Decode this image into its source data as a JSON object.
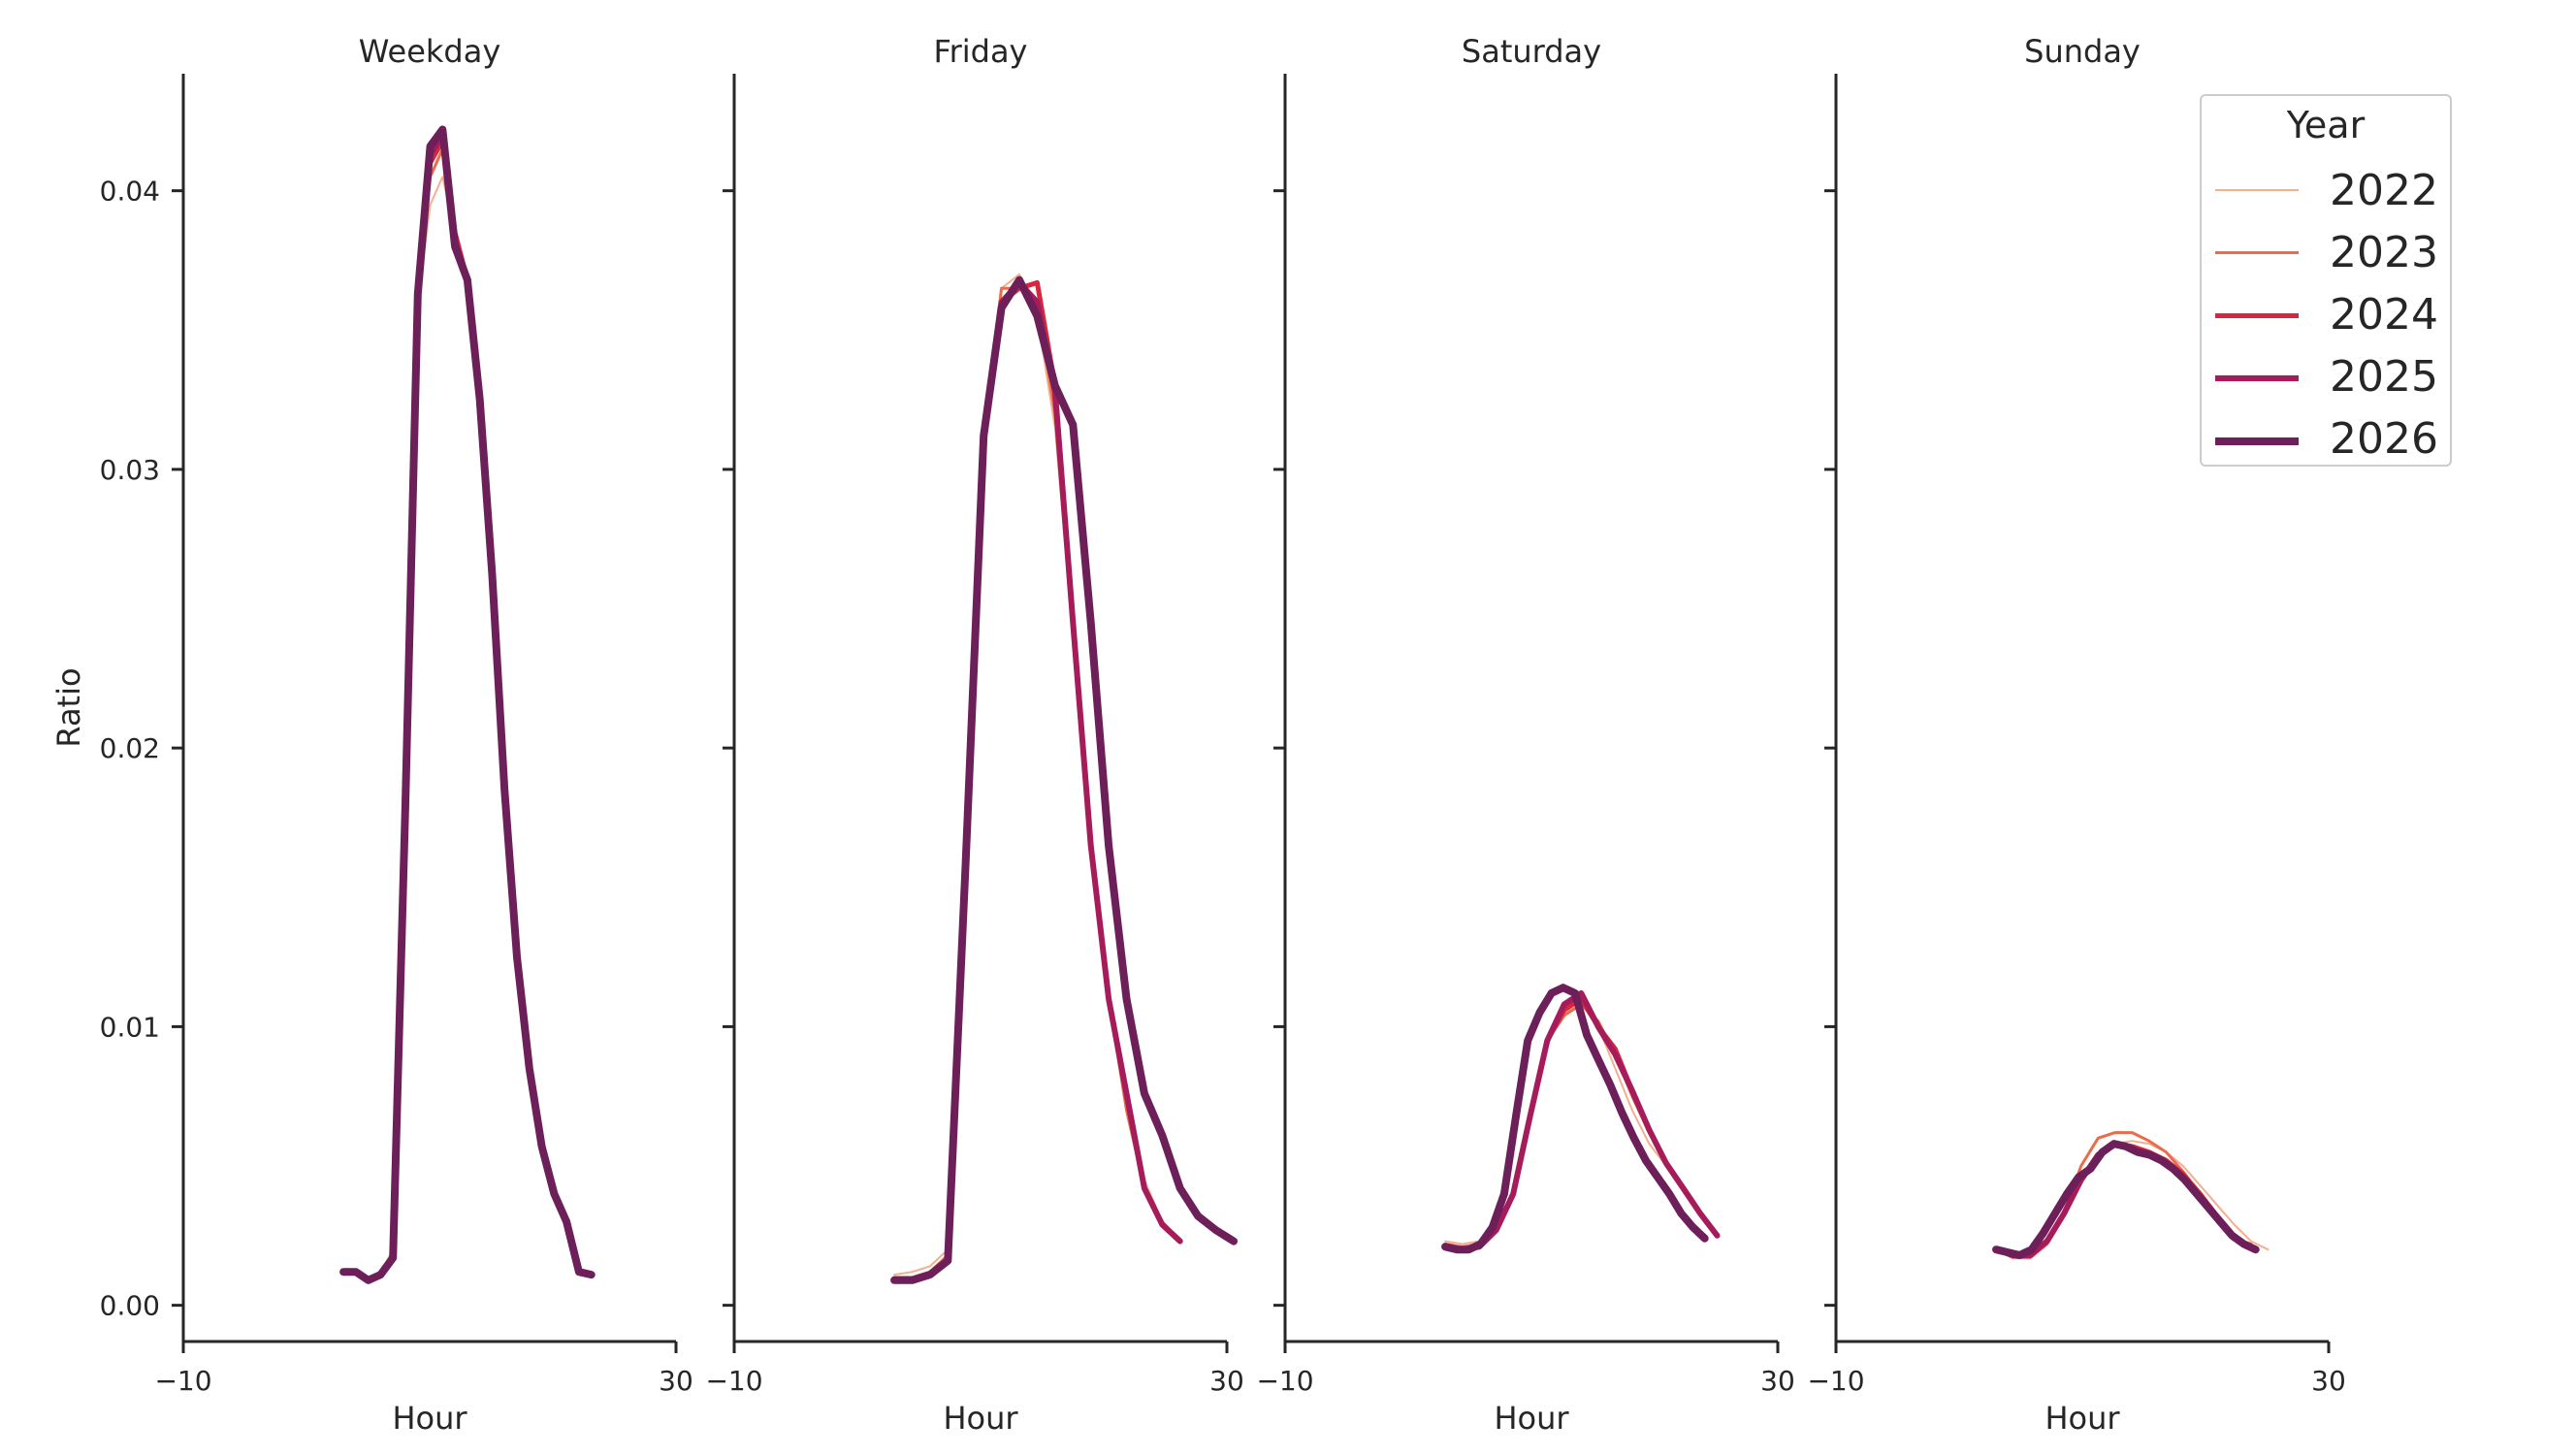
{
  "chart_data": {
    "type": "line",
    "ylabel": "Ratio",
    "xlabel": "Hour",
    "xlim": [
      -10,
      30
    ],
    "ylim": [
      -0.0013,
      0.0442
    ],
    "xticks": [
      -10,
      30
    ],
    "yticks": [
      0.0,
      0.01,
      0.02,
      0.03,
      0.04
    ],
    "ytick_labels": [
      "0.00",
      "0.01",
      "0.02",
      "0.03",
      "0.04"
    ],
    "legend": {
      "title": "Year",
      "placement": "top-right",
      "entries": [
        {
          "label": "2022",
          "color": "#f3b08e",
          "width": 2
        },
        {
          "label": "2023",
          "color": "#ec6b4b",
          "width": 3
        },
        {
          "label": "2024",
          "color": "#d6273f",
          "width": 5
        },
        {
          "label": "2025",
          "color": "#a61b5a",
          "width": 6
        },
        {
          "label": "2026",
          "color": "#6c1f58",
          "width": 8
        }
      ]
    },
    "x": [
      0,
      1,
      2,
      3,
      4,
      5,
      6,
      7,
      8,
      9,
      10,
      11,
      12,
      13,
      14,
      15,
      16,
      17,
      18,
      19,
      20,
      21,
      22,
      23
    ],
    "panels": [
      {
        "title": "Weekday",
        "series": [
          {
            "name": "2022",
            "values": [
              0.0012,
              0.0012,
              0.001,
              0.0012,
              0.002,
              0.018,
              0.036,
              0.0395,
              0.0405,
              0.0385,
              0.0365,
              0.032,
              0.026,
              0.0185,
              0.0125,
              0.0085,
              0.0057,
              0.004,
              0.003,
              0.0013,
              0.0012,
              null,
              null,
              null
            ]
          },
          {
            "name": "2023",
            "values": [
              0.0012,
              0.0012,
              0.0009,
              0.0011,
              0.0018,
              0.018,
              0.0362,
              0.0405,
              0.0415,
              0.0385,
              0.0368,
              0.0322,
              0.0262,
              0.0185,
              0.0125,
              0.0085,
              0.0057,
              0.004,
              0.003,
              0.0012,
              0.0011,
              null,
              null,
              null
            ]
          },
          {
            "name": "2024",
            "values": [
              0.0012,
              0.0012,
              0.0009,
              0.0011,
              0.0018,
              0.018,
              0.0362,
              0.041,
              0.0418,
              0.0385,
              0.0368,
              0.0323,
              0.0262,
              0.0185,
              0.0125,
              0.0085,
              0.0057,
              0.004,
              0.003,
              0.0012,
              0.0011,
              null,
              null,
              null
            ]
          },
          {
            "name": "2025",
            "values": [
              0.0012,
              0.0012,
              0.0009,
              0.0011,
              0.0017,
              0.018,
              0.0363,
              0.0413,
              0.042,
              0.0382,
              0.0368,
              0.0324,
              0.0262,
              0.0185,
              0.0125,
              0.0085,
              0.0057,
              0.004,
              0.003,
              0.0012,
              0.0011,
              null,
              null,
              null
            ]
          },
          {
            "name": "2026",
            "values": [
              0.0012,
              0.0012,
              0.0009,
              0.0011,
              0.0017,
              0.018,
              0.0363,
              0.0416,
              0.0422,
              0.038,
              0.0368,
              0.0325,
              0.0262,
              0.0185,
              0.0125,
              0.0085,
              0.0057,
              0.004,
              0.003,
              0.0012,
              0.0011,
              null,
              null,
              null
            ]
          }
        ]
      },
      {
        "title": "Friday",
        "series": [
          {
            "name": "2022",
            "values": [
              0.0011,
              0.0012,
              0.0014,
              0.002,
              0.016,
              0.0315,
              0.0365,
              0.037,
              0.0355,
              0.0315,
              0.024,
              0.0165,
              0.011,
              0.007,
              0.0045,
              0.003,
              0.0024,
              null,
              null,
              null,
              null,
              null,
              null,
              null
            ]
          },
          {
            "name": "2023",
            "values": [
              0.001,
              0.001,
              0.0012,
              0.0018,
              0.016,
              0.0313,
              0.0365,
              0.0365,
              0.036,
              0.032,
              0.0242,
              0.0165,
              0.011,
              0.007,
              0.0042,
              0.003,
              0.0023,
              null,
              null,
              null,
              null,
              null,
              null,
              null
            ]
          },
          {
            "name": "2024",
            "values": [
              0.0009,
              0.0009,
              0.0011,
              0.0016,
              0.016,
              0.0312,
              0.036,
              0.0365,
              0.0367,
              0.033,
              0.0244,
              0.0165,
              0.011,
              0.0075,
              0.0042,
              0.0029,
              0.0023,
              null,
              null,
              null,
              null,
              null,
              null,
              null
            ]
          },
          {
            "name": "2025",
            "values": [
              0.0009,
              0.0009,
              0.0011,
              0.0016,
              0.016,
              0.0312,
              0.036,
              0.0367,
              0.036,
              0.0328,
              0.0245,
              0.0165,
              0.011,
              0.0076,
              0.0042,
              0.0029,
              0.0023,
              null,
              null,
              null,
              null,
              null,
              null,
              null
            ]
          },
          {
            "name": "2026",
            "values": [
              0.0009,
              0.0009,
              0.0011,
              0.0016,
              0.016,
              0.0312,
              0.0358,
              0.0368,
              0.0355,
              0.033,
              0.0316,
              0.0245,
              0.0165,
              0.011,
              0.0076,
              0.0061,
              0.0042,
              0.0032,
              0.0027,
              0.0023,
              null,
              null,
              null,
              null
            ]
          }
        ]
      },
      {
        "title": "Saturday",
        "series": [
          {
            "name": "2022",
            "values": [
              0.0023,
              0.0022,
              0.0023,
              0.0028,
              0.004,
              0.007,
              0.0095,
              0.0105,
              0.0108,
              0.01,
              0.0085,
              0.007,
              0.0058,
              0.005,
              0.0042,
              0.0033,
              0.0025,
              null,
              null,
              null,
              null,
              null,
              null,
              null
            ]
          },
          {
            "name": "2023",
            "values": [
              0.0022,
              0.0021,
              0.0022,
              0.0027,
              0.004,
              0.0068,
              0.0095,
              0.0104,
              0.0108,
              0.0102,
              0.009,
              0.0075,
              0.0062,
              0.0051,
              0.0042,
              0.0033,
              0.0025,
              null,
              null,
              null,
              null,
              null,
              null,
              null
            ]
          },
          {
            "name": "2024",
            "values": [
              0.0021,
              0.002,
              0.0021,
              0.0027,
              0.004,
              0.0068,
              0.0095,
              0.0106,
              0.011,
              0.01,
              0.0092,
              0.0077,
              0.0063,
              0.0051,
              0.0042,
              0.0033,
              0.0025,
              null,
              null,
              null,
              null,
              null,
              null,
              null
            ]
          },
          {
            "name": "2025",
            "values": [
              0.0021,
              0.002,
              0.0021,
              0.0027,
              0.004,
              0.0068,
              0.0095,
              0.0108,
              0.0112,
              0.01,
              0.009,
              0.0077,
              0.0063,
              0.0051,
              0.0042,
              0.0033,
              0.0025,
              null,
              null,
              null,
              null,
              null,
              null,
              null
            ]
          },
          {
            "name": "2026",
            "values": [
              0.0021,
              0.002,
              0.002,
              0.0022,
              0.0028,
              0.004,
              0.0068,
              0.0095,
              0.0105,
              0.0112,
              0.0114,
              0.0112,
              0.0097,
              0.0088,
              0.0079,
              0.0069,
              0.006,
              0.0052,
              0.0046,
              0.004,
              0.0033,
              0.0028,
              0.0024,
              null
            ]
          }
        ]
      },
      {
        "title": "Sunday",
        "series": [
          {
            "name": "2022",
            "values": [
              0.002,
              0.0018,
              0.0019,
              0.0024,
              0.0033,
              0.0044,
              0.0052,
              0.0058,
              0.0059,
              0.0058,
              0.0055,
              0.005,
              0.0043,
              0.0036,
              0.0029,
              0.0023,
              0.002,
              null,
              null,
              null,
              null,
              null,
              null,
              null
            ]
          },
          {
            "name": "2023",
            "values": [
              0.002,
              0.0017,
              0.0017,
              0.0022,
              0.0033,
              0.005,
              0.006,
              0.0062,
              0.0062,
              0.0059,
              0.0055,
              0.0048,
              0.004,
              0.0031,
              0.0024,
              0.0022,
              null,
              null,
              null,
              null,
              null,
              null,
              null,
              null
            ]
          },
          {
            "name": "2024",
            "values": [
              0.002,
              0.0018,
              0.0018,
              0.0023,
              0.0033,
              0.0045,
              0.0054,
              0.0058,
              0.0057,
              0.0055,
              0.0052,
              0.0047,
              0.004,
              0.0032,
              0.0024,
              0.0021,
              null,
              null,
              null,
              null,
              null,
              null,
              null,
              null
            ]
          },
          {
            "name": "2025",
            "values": [
              0.002,
              0.0018,
              0.0018,
              0.0023,
              0.0033,
              0.0045,
              0.0054,
              0.0058,
              0.0056,
              0.0054,
              0.0051,
              0.0046,
              0.0039,
              0.0031,
              0.0024,
              0.0021,
              null,
              null,
              null,
              null,
              null,
              null,
              null,
              null
            ]
          },
          {
            "name": "2026",
            "values": [
              0.002,
              0.0019,
              0.0018,
              0.002,
              0.0026,
              0.0033,
              0.004,
              0.0046,
              0.0049,
              0.0055,
              0.0058,
              0.0057,
              0.0055,
              0.0054,
              0.0052,
              0.0049,
              0.0045,
              0.004,
              0.0035,
              0.003,
              0.0025,
              0.0022,
              0.002,
              null
            ]
          }
        ]
      }
    ]
  }
}
